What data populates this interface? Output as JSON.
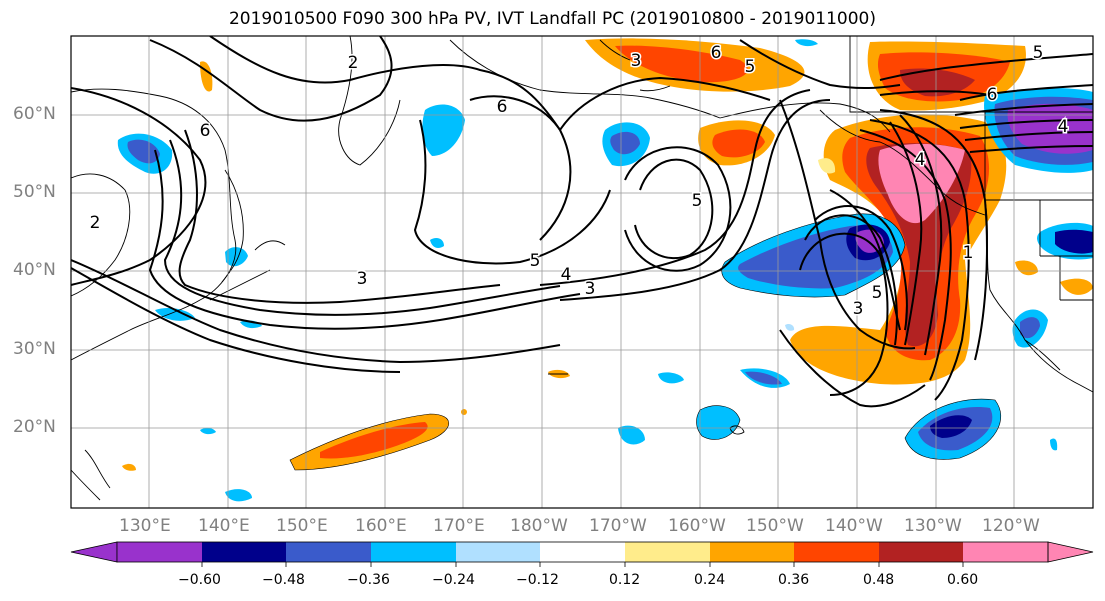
{
  "title": "2019010500 F090 300 hPa PV, IVT Landfall PC (2019010800 - 2019011000)",
  "lat_labels": [
    "60°N",
    "50°N",
    "40°N",
    "30°N",
    "20°N"
  ],
  "lon_labels": [
    "130°E",
    "140°E",
    "150°E",
    "160°E",
    "170°E",
    "180°W",
    "170°W",
    "160°W",
    "150°W",
    "140°W",
    "130°W",
    "120°W"
  ],
  "contour_labels": [
    "2",
    "6",
    "6",
    "5",
    "5",
    "6",
    "6",
    "5",
    "4",
    "3",
    "5",
    "4",
    "3",
    "4",
    "5",
    "3",
    "1",
    "2",
    "3"
  ],
  "colorbar": {
    "ticks": [
      "−0.60",
      "−0.48",
      "−0.36",
      "−0.24",
      "−0.12",
      "0.12",
      "0.24",
      "0.36",
      "0.48",
      "0.60"
    ],
    "colors": [
      "#9932CC",
      "#00008B",
      "#3A5BCB",
      "#00BFFF",
      "#B0E0FF",
      "#FFFFFF",
      "#FFEC8B",
      "#FFA500",
      "#FF4500",
      "#B22222",
      "#FF85B3"
    ]
  }
}
